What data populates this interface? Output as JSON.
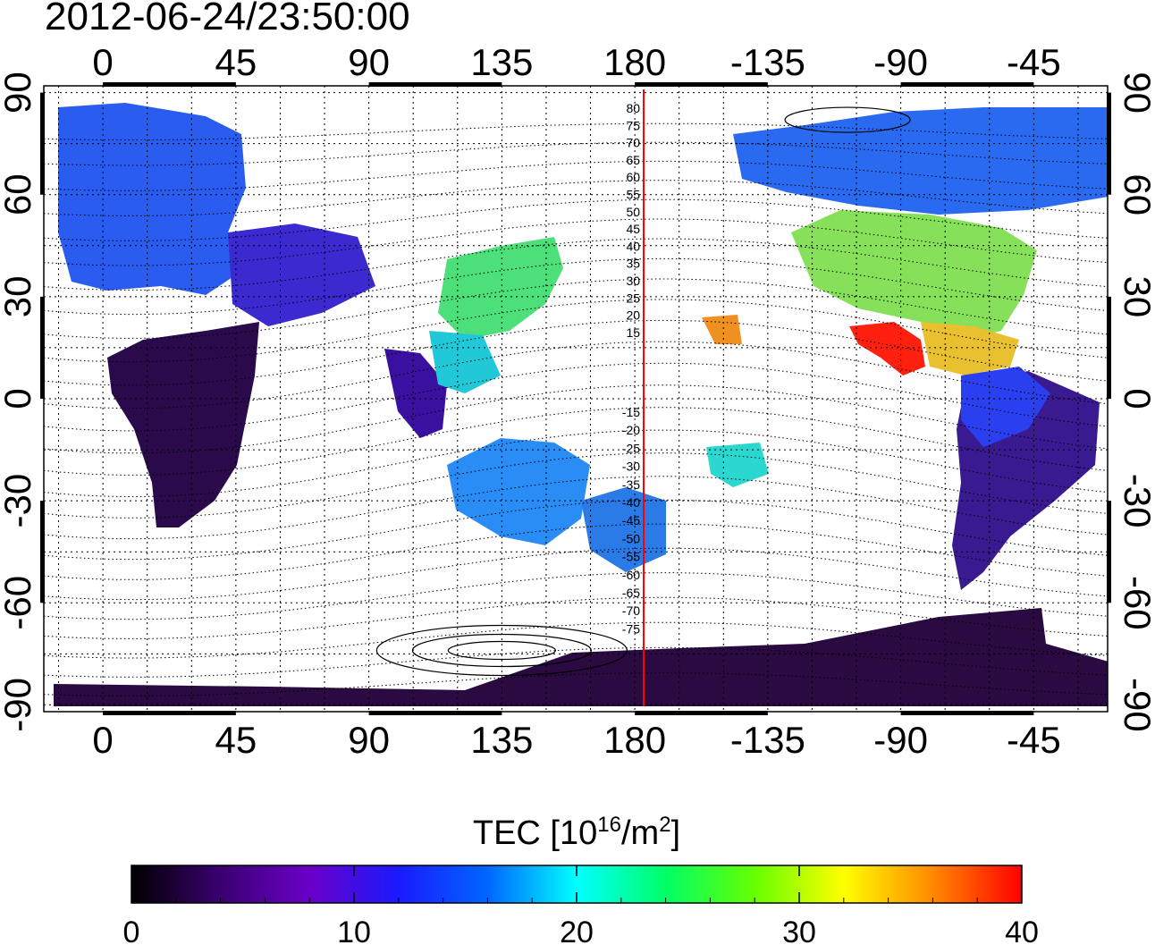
{
  "timestamp": "2012-06-24/23:50:00",
  "map": {
    "lon_ticks_top": [
      "0",
      "45",
      "90",
      "135",
      "180",
      "-135",
      "-90",
      "-45"
    ],
    "lon_ticks_bottom": [
      "0",
      "45",
      "90",
      "135",
      "180",
      "-135",
      "-90",
      "-45"
    ],
    "lat_ticks_left": [
      "90",
      "60",
      "30",
      "0",
      "-30",
      "-60",
      "-90"
    ],
    "lat_ticks_right": [
      "90",
      "60",
      "30",
      "0",
      "-30",
      "-60",
      "-90"
    ],
    "lon_range": [
      -20,
      340
    ],
    "lat_range": [
      -92,
      92
    ],
    "grid": "dotted, 15 degree",
    "meridian_marker_lon": 183,
    "meridian_marker_color": "#ff0000",
    "contour_labels_north": [
      "80",
      "75",
      "70",
      "65",
      "60",
      "55",
      "50",
      "45",
      "40",
      "35",
      "30",
      "25",
      "20",
      "15"
    ],
    "contour_labels_south": [
      "-15",
      "-20",
      "-25",
      "-30",
      "-35",
      "-40",
      "-45",
      "-50",
      "-55",
      "-60",
      "-65",
      "-70",
      "-75"
    ]
  },
  "colorbar": {
    "label": "TEC  [10",
    "label_sup1": "16",
    "label_mid": "/m",
    "label_sup2": "2",
    "label_end": "]",
    "ticks": [
      "0",
      "10",
      "20",
      "30",
      "40"
    ],
    "range": [
      0,
      40
    ],
    "colors": [
      "#000000",
      "#3a0070",
      "#6a00c8",
      "#0000ff",
      "#0066ff",
      "#00ffff",
      "#00ff66",
      "#66ff00",
      "#ffff00",
      "#ff8800",
      "#ff0000"
    ]
  }
}
